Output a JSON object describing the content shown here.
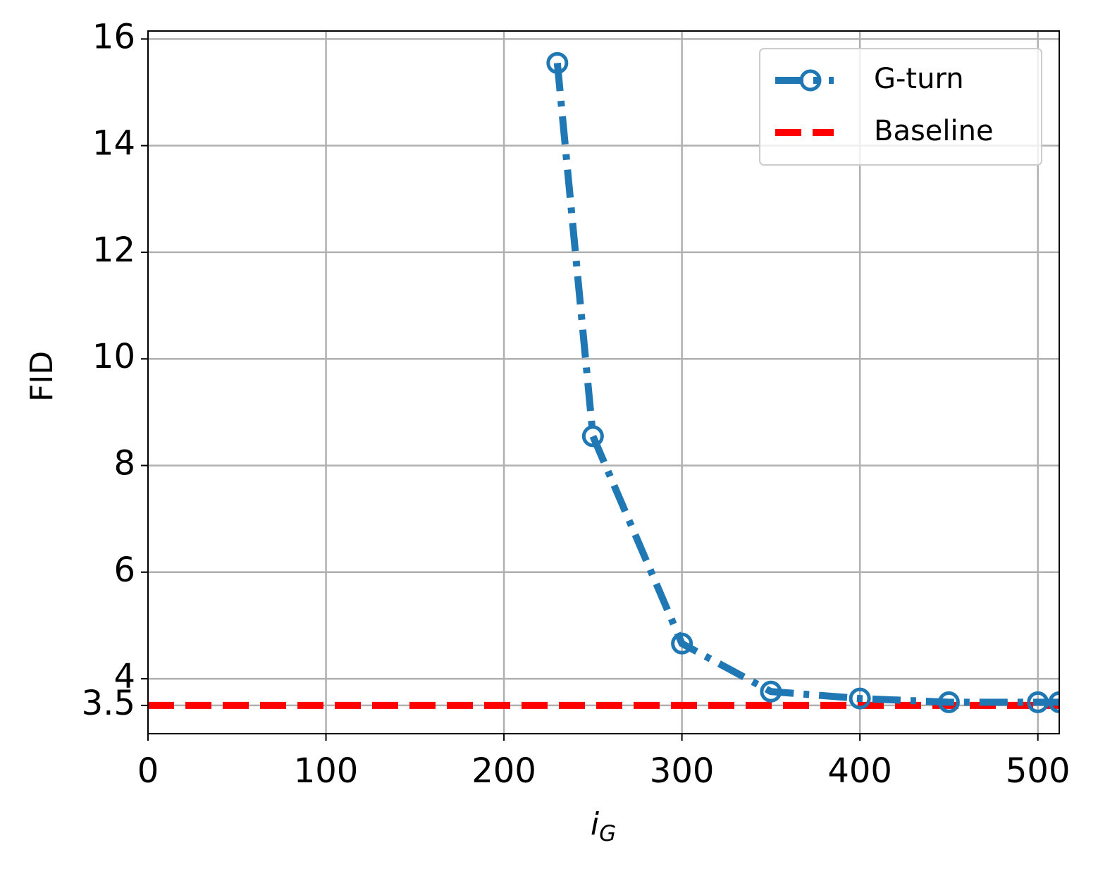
{
  "chart_data": {
    "type": "line",
    "xlabel": "i",
    "xlabel_subscript": "G",
    "ylabel": "FID",
    "x": [
      230,
      250,
      300,
      350,
      400,
      450,
      500,
      512
    ],
    "series": [
      {
        "name": "G-turn",
        "color": "#1f77b4",
        "values": [
          15.55,
          8.55,
          4.66,
          3.76,
          3.63,
          3.56,
          3.56,
          3.56
        ]
      }
    ],
    "hlines": [
      {
        "name": "Baseline",
        "color": "#ff0000",
        "value": 3.5
      }
    ],
    "xlim": [
      0,
      512
    ],
    "ylim": [
      2.97,
      16.15
    ],
    "xticks": [
      0,
      100,
      200,
      300,
      400,
      500
    ],
    "yticks": [
      3.5,
      4,
      6,
      8,
      10,
      12,
      14,
      16
    ],
    "grid": true,
    "legend": "upper right"
  }
}
